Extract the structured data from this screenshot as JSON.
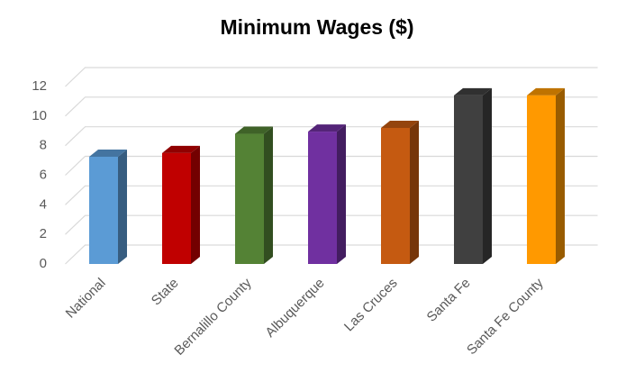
{
  "chart_data": {
    "type": "bar3d",
    "title": "Minimum Wages ($)",
    "categories": [
      "National",
      "State",
      "Bernalillo County",
      "Albuquerque",
      "Las Cruces",
      "Santa Fe",
      "Santa Fe County"
    ],
    "values": [
      7.25,
      7.5,
      8.8,
      8.95,
      9.2,
      11.4,
      11.4
    ],
    "colors": [
      "#5b9bd5",
      "#c00000",
      "#548235",
      "#7030a0",
      "#c55a11",
      "#404040",
      "#ff9900"
    ],
    "ylim": [
      0,
      12
    ],
    "yticks": [
      0,
      2,
      4,
      6,
      8,
      10,
      12
    ],
    "grid": true
  }
}
